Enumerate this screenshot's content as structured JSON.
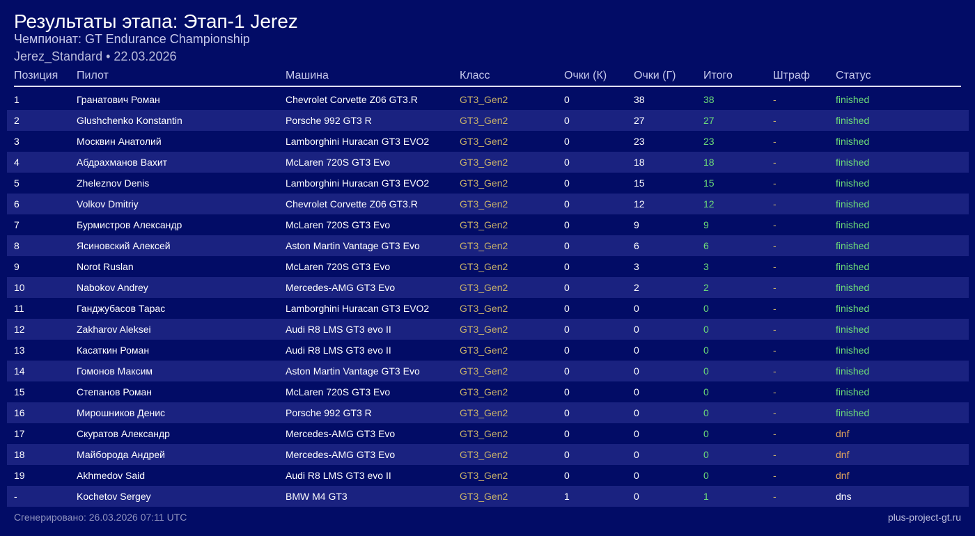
{
  "header": {
    "title": "Результаты этапа: Этап-1 Jerez",
    "championship": "Чемпионат: GT Endurance Championship",
    "meta": "Jerez_Standard • 22.03.2026"
  },
  "table": {
    "columns": [
      "Позиция",
      "Пилот",
      "Машина",
      "Класс",
      "Очки (К)",
      "Очки (Г)",
      "Итого",
      "Штраф",
      "Статус"
    ],
    "rows": [
      {
        "pos": "1",
        "pilot": "Гранатович Роман",
        "car": "Chevrolet Corvette Z06 GT3.R",
        "class": "GT3_Gen2",
        "qp": "0",
        "rp": "38",
        "total": "38",
        "penalty": "-",
        "status": "finished"
      },
      {
        "pos": "2",
        "pilot": "Glushchenko Konstantin",
        "car": "Porsche 992 GT3 R",
        "class": "GT3_Gen2",
        "qp": "0",
        "rp": "27",
        "total": "27",
        "penalty": "-",
        "status": "finished"
      },
      {
        "pos": "3",
        "pilot": "Москвин Анатолий",
        "car": "Lamborghini Huracan GT3 EVO2",
        "class": "GT3_Gen2",
        "qp": "0",
        "rp": "23",
        "total": "23",
        "penalty": "-",
        "status": "finished"
      },
      {
        "pos": "4",
        "pilot": "Абдрахманов Вахит",
        "car": "McLaren 720S GT3 Evo",
        "class": "GT3_Gen2",
        "qp": "0",
        "rp": "18",
        "total": "18",
        "penalty": "-",
        "status": "finished"
      },
      {
        "pos": "5",
        "pilot": "Zheleznov Denis",
        "car": "Lamborghini Huracan GT3 EVO2",
        "class": "GT3_Gen2",
        "qp": "0",
        "rp": "15",
        "total": "15",
        "penalty": "-",
        "status": "finished"
      },
      {
        "pos": "6",
        "pilot": "Volkov Dmitriy",
        "car": "Chevrolet Corvette Z06 GT3.R",
        "class": "GT3_Gen2",
        "qp": "0",
        "rp": "12",
        "total": "12",
        "penalty": "-",
        "status": "finished"
      },
      {
        "pos": "7",
        "pilot": "Бурмистров Александр",
        "car": "McLaren 720S GT3 Evo",
        "class": "GT3_Gen2",
        "qp": "0",
        "rp": "9",
        "total": "9",
        "penalty": "-",
        "status": "finished"
      },
      {
        "pos": "8",
        "pilot": "Ясиновский Алексей",
        "car": "Aston Martin Vantage GT3 Evo",
        "class": "GT3_Gen2",
        "qp": "0",
        "rp": "6",
        "total": "6",
        "penalty": "-",
        "status": "finished"
      },
      {
        "pos": "9",
        "pilot": "Norot Ruslan",
        "car": "McLaren 720S GT3 Evo",
        "class": "GT3_Gen2",
        "qp": "0",
        "rp": "3",
        "total": "3",
        "penalty": "-",
        "status": "finished"
      },
      {
        "pos": "10",
        "pilot": "Nabokov Andrey",
        "car": "Mercedes-AMG GT3 Evo",
        "class": "GT3_Gen2",
        "qp": "0",
        "rp": "2",
        "total": "2",
        "penalty": "-",
        "status": "finished"
      },
      {
        "pos": "11",
        "pilot": "Ганджубасов Тарас",
        "car": "Lamborghini Huracan GT3 EVO2",
        "class": "GT3_Gen2",
        "qp": "0",
        "rp": "0",
        "total": "0",
        "penalty": "-",
        "status": "finished"
      },
      {
        "pos": "12",
        "pilot": "Zakharov Aleksei",
        "car": "Audi R8 LMS GT3 evo II",
        "class": "GT3_Gen2",
        "qp": "0",
        "rp": "0",
        "total": "0",
        "penalty": "-",
        "status": "finished"
      },
      {
        "pos": "13",
        "pilot": "Касаткин Роман",
        "car": "Audi R8 LMS GT3 evo II",
        "class": "GT3_Gen2",
        "qp": "0",
        "rp": "0",
        "total": "0",
        "penalty": "-",
        "status": "finished"
      },
      {
        "pos": "14",
        "pilot": "Гомонов Максим",
        "car": "Aston Martin Vantage GT3 Evo",
        "class": "GT3_Gen2",
        "qp": "0",
        "rp": "0",
        "total": "0",
        "penalty": "-",
        "status": "finished"
      },
      {
        "pos": "15",
        "pilot": "Степанов Роман",
        "car": "McLaren 720S GT3 Evo",
        "class": "GT3_Gen2",
        "qp": "0",
        "rp": "0",
        "total": "0",
        "penalty": "-",
        "status": "finished"
      },
      {
        "pos": "16",
        "pilot": "Мирошников Денис",
        "car": "Porsche 992 GT3 R",
        "class": "GT3_Gen2",
        "qp": "0",
        "rp": "0",
        "total": "0",
        "penalty": "-",
        "status": "finished"
      },
      {
        "pos": "17",
        "pilot": "Скуратов Александр",
        "car": "Mercedes-AMG GT3 Evo",
        "class": "GT3_Gen2",
        "qp": "0",
        "rp": "0",
        "total": "0",
        "penalty": "-",
        "status": "dnf"
      },
      {
        "pos": "18",
        "pilot": "Майборода Андрей",
        "car": "Mercedes-AMG GT3 Evo",
        "class": "GT3_Gen2",
        "qp": "0",
        "rp": "0",
        "total": "0",
        "penalty": "-",
        "status": "dnf"
      },
      {
        "pos": "19",
        "pilot": "Akhmedov Said",
        "car": "Audi R8 LMS GT3 evo II",
        "class": "GT3_Gen2",
        "qp": "0",
        "rp": "0",
        "total": "0",
        "penalty": "-",
        "status": "dnf"
      },
      {
        "pos": "-",
        "pilot": "Kochetov Sergey",
        "car": "BMW M4 GT3",
        "class": "GT3_Gen2",
        "qp": "1",
        "rp": "0",
        "total": "1",
        "penalty": "-",
        "status": "dns"
      }
    ]
  },
  "footer": {
    "generated": "Сгенерировано: 26.03.2026 07:11 UTC",
    "site": "plus-project-gt.ru"
  },
  "colors": {
    "background": "#020c66",
    "row_alt": "#1a2280",
    "class_text": "#c8b16a",
    "total_text": "#6ddc79",
    "status_finished": "#6ddc79",
    "status_dnf": "#e2a55c",
    "status_dns": "#ffffff"
  }
}
